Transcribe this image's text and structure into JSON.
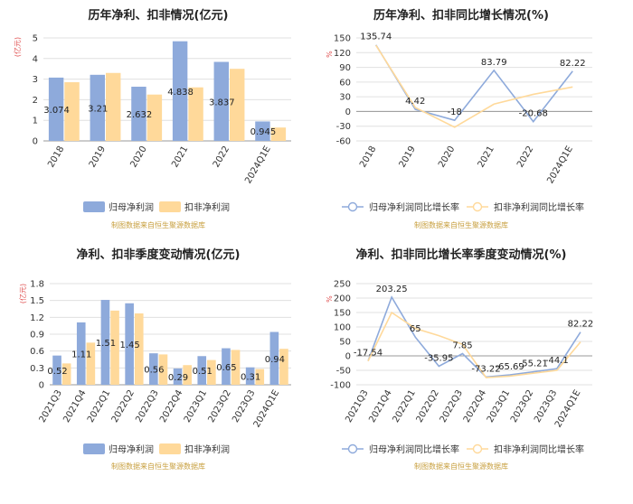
{
  "colors": {
    "primary": "#8eaadb",
    "secondary": "#ffd99a",
    "axis_text": "#333333",
    "grid": "#e0e0e0",
    "unit": "#e05050",
    "source": "#c8a040"
  },
  "source_text": "制图数据来自恒生聚源数据库",
  "chart_data": [
    {
      "type": "bar",
      "title": "历年净利、扣非情况(亿元)",
      "unit_label": "(亿元)",
      "categories": [
        "2018",
        "2019",
        "2020",
        "2021",
        "2022",
        "2024Q1E"
      ],
      "series": [
        {
          "name": "归母净利润",
          "values": [
            3.074,
            3.21,
            2.632,
            4.838,
            3.837,
            0.945
          ],
          "labels": [
            "3.074",
            "3.21",
            "2.632",
            "4.838",
            "3.837",
            "0.945"
          ]
        },
        {
          "name": "扣非净利润",
          "values": [
            2.85,
            3.3,
            2.25,
            2.6,
            3.5,
            0.65
          ]
        }
      ],
      "yticks": [
        "0",
        "1",
        "2",
        "3",
        "4",
        "5"
      ],
      "ylim": [
        0,
        5
      ],
      "grid": true,
      "legend": "bottom"
    },
    {
      "type": "line",
      "title": "历年净利、扣非同比增长情况(%)",
      "unit_label": "%",
      "categories": [
        "2018",
        "2019",
        "2020",
        "2021",
        "2022",
        "2024Q1E"
      ],
      "series": [
        {
          "name": "归母净利润同比增长率",
          "values": [
            135.74,
            4.42,
            -18,
            83.79,
            -20.68,
            82.22
          ],
          "labels": [
            "135.74",
            "4.42",
            "-18",
            "83.79",
            "-20.68",
            "82.22"
          ]
        },
        {
          "name": "扣非净利润同比增长率",
          "values": [
            135,
            8,
            -32,
            15,
            35,
            50
          ]
        }
      ],
      "yticks": [
        "150",
        "120",
        "90",
        "60",
        "30",
        "0",
        "-30",
        "-60"
      ],
      "ylim": [
        -60,
        150
      ],
      "grid": true,
      "legend": "bottom"
    },
    {
      "type": "bar",
      "title": "净利、扣非季度变动情况(亿元)",
      "unit_label": "(亿元)",
      "categories": [
        "2021Q3",
        "2021Q4",
        "2022Q1",
        "2022Q2",
        "2022Q3",
        "2022Q4",
        "2023Q1",
        "2023Q2",
        "2023Q3",
        "2024Q1E"
      ],
      "series": [
        {
          "name": "归母净利润",
          "values": [
            0.52,
            1.11,
            1.51,
            1.45,
            0.56,
            0.29,
            0.51,
            0.65,
            0.31,
            0.94
          ],
          "labels": [
            "0.52",
            "1.11",
            "1.51",
            "1.45",
            "0.56",
            "0.29",
            "0.51",
            "0.65",
            "0.31",
            "0.94"
          ]
        },
        {
          "name": "扣非净利润",
          "values": [
            0.38,
            0.75,
            1.32,
            1.27,
            0.54,
            0.35,
            0.44,
            0.62,
            0.28,
            0.64
          ]
        }
      ],
      "yticks": [
        "0",
        "0.3",
        "0.6",
        "0.9",
        "1.2",
        "1.5",
        "1.8"
      ],
      "ylim": [
        0,
        1.8
      ],
      "grid": true,
      "legend": "bottom"
    },
    {
      "type": "line",
      "title": "净利、扣非同比增长率季度变动情况(%)",
      "unit_label": "%",
      "categories": [
        "2021Q3",
        "2021Q4",
        "2022Q1",
        "2022Q2",
        "2022Q3",
        "2022Q4",
        "2023Q1",
        "2023Q2",
        "2023Q3",
        "2024Q1E"
      ],
      "series": [
        {
          "name": "归母净利润同比增长率",
          "values": [
            -17.54,
            203.25,
            65,
            -35.95,
            7.85,
            -73.22,
            -65.69,
            -55.21,
            -44.1,
            82.22
          ],
          "labels": [
            "-17.54",
            "203.25",
            "65",
            "-35.95",
            "7.85",
            "-73.22",
            "-65.69",
            "-55.21",
            "-44.1",
            "82.22"
          ]
        },
        {
          "name": "扣非净利润同比增长率",
          "values": [
            -18,
            150,
            95,
            70,
            40,
            -75,
            -70,
            -60,
            -50,
            48
          ]
        }
      ],
      "yticks": [
        "250",
        "200",
        "150",
        "100",
        "50",
        "0",
        "-50",
        "-100"
      ],
      "ylim": [
        -100,
        250
      ],
      "grid": true,
      "legend": "bottom"
    }
  ]
}
